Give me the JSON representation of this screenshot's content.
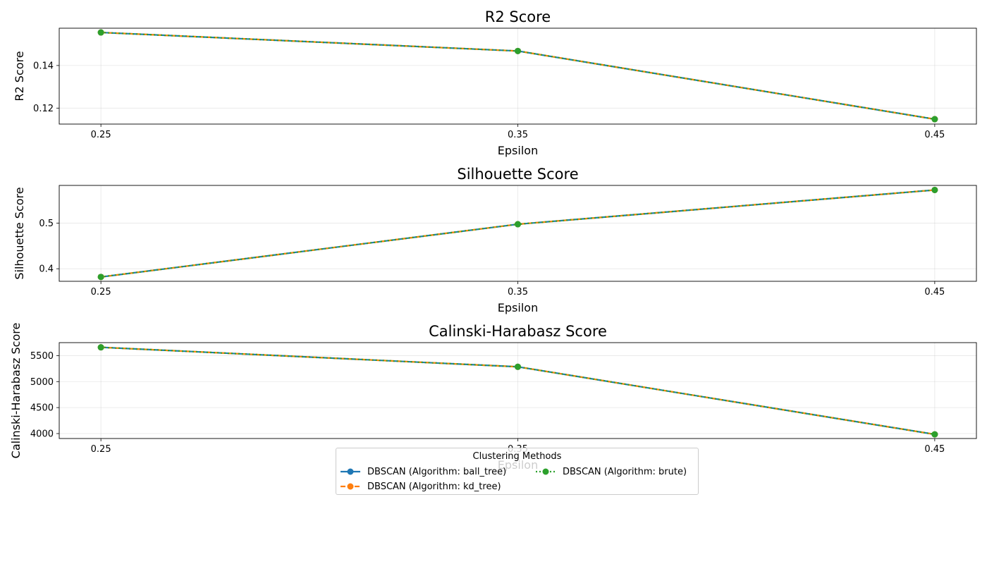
{
  "chart_data": [
    {
      "type": "line",
      "title": "R2 Score",
      "xlabel": "Epsilon",
      "ylabel": "R2 Score",
      "x": [
        0.25,
        0.35,
        0.45
      ],
      "x_tick_labels": [
        "0.25",
        "0.35",
        "0.45"
      ],
      "ylim": [
        0.1125,
        0.1575
      ],
      "y_ticks": [
        0.12,
        0.14
      ],
      "y_tick_labels": [
        "0.12",
        "0.14"
      ],
      "grid": true,
      "series": [
        {
          "name": "DBSCAN (Algorithm: ball_tree)",
          "values": [
            0.1555,
            0.1468,
            0.1148
          ]
        },
        {
          "name": "DBSCAN (Algorithm: kd_tree)",
          "values": [
            0.1555,
            0.1468,
            0.1148
          ]
        },
        {
          "name": "DBSCAN (Algorithm: brute)",
          "values": [
            0.1555,
            0.1468,
            0.1148
          ]
        }
      ]
    },
    {
      "type": "line",
      "title": "Silhouette Score",
      "xlabel": "Epsilon",
      "ylabel": "Silhouette Score",
      "x": [
        0.25,
        0.35,
        0.45
      ],
      "x_tick_labels": [
        "0.25",
        "0.35",
        "0.45"
      ],
      "ylim": [
        0.3725,
        0.5825
      ],
      "y_ticks": [
        0.4,
        0.5
      ],
      "y_tick_labels": [
        "0.4",
        "0.5"
      ],
      "grid": true,
      "series": [
        {
          "name": "DBSCAN (Algorithm: ball_tree)",
          "values": [
            0.382,
            0.4975,
            0.5725
          ]
        },
        {
          "name": "DBSCAN (Algorithm: kd_tree)",
          "values": [
            0.382,
            0.4975,
            0.5725
          ]
        },
        {
          "name": "DBSCAN (Algorithm: brute)",
          "values": [
            0.382,
            0.4975,
            0.5725
          ]
        }
      ]
    },
    {
      "type": "line",
      "title": "Calinski-Harabasz Score",
      "xlabel": "Epsilon",
      "ylabel": "Calinski-Harabasz Score",
      "x": [
        0.25,
        0.35,
        0.45
      ],
      "x_tick_labels": [
        "0.25",
        "0.35",
        "0.45"
      ],
      "ylim": [
        3905,
        5750
      ],
      "y_ticks": [
        4000,
        4500,
        5000,
        5500
      ],
      "y_tick_labels": [
        "4000",
        "4500",
        "5000",
        "5500"
      ],
      "grid": true,
      "series": [
        {
          "name": "DBSCAN (Algorithm: ball_tree)",
          "values": [
            5660,
            5285,
            3985
          ]
        },
        {
          "name": "DBSCAN (Algorithm: kd_tree)",
          "values": [
            5660,
            5285,
            3985
          ]
        },
        {
          "name": "DBSCAN (Algorithm: brute)",
          "values": [
            5660,
            5285,
            3985
          ]
        }
      ]
    }
  ],
  "legend": {
    "title": "Clustering Methods",
    "placement": "bottom-center",
    "items": [
      {
        "label": "DBSCAN (Algorithm: ball_tree)",
        "color": "#1f77b4",
        "style": "solid"
      },
      {
        "label": "DBSCAN (Algorithm: kd_tree)",
        "color": "#ff7f0e",
        "style": "dashed"
      },
      {
        "label": "DBSCAN (Algorithm: brute)",
        "color": "#2ca02c",
        "style": "dotted"
      }
    ]
  }
}
